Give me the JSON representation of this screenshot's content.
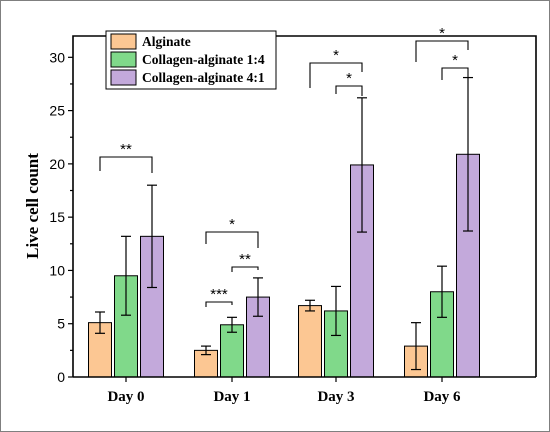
{
  "chart_data": {
    "type": "bar",
    "title": "",
    "xlabel": "",
    "ylabel": "Live cell count",
    "categories": [
      "Day 0",
      "Day 1",
      "Day 3",
      "Day 6"
    ],
    "ylim": [
      0,
      32
    ],
    "yticks": [
      0,
      5,
      10,
      15,
      20,
      25,
      30
    ],
    "grid": false,
    "legend_position": "top-left",
    "series": [
      {
        "name": "Alginate",
        "color": "#fcc793",
        "values": [
          5.1,
          2.5,
          6.7,
          2.9
        ],
        "errors": [
          1.0,
          0.4,
          0.5,
          2.2
        ]
      },
      {
        "name": "Collagen-alginate 1:4",
        "color": "#80d98a",
        "values": [
          9.5,
          4.9,
          6.2,
          8.0
        ],
        "errors": [
          3.7,
          0.7,
          2.3,
          2.4
        ]
      },
      {
        "name": "Collagen-alginate 4:1",
        "color": "#c3a9db",
        "values": [
          13.2,
          7.5,
          19.9,
          20.9
        ],
        "errors": [
          4.8,
          1.8,
          6.3,
          7.2
        ]
      }
    ],
    "significance": [
      {
        "category": 0,
        "from": 0,
        "to": 2,
        "label": "**"
      },
      {
        "category": 1,
        "from": 0,
        "to": 1,
        "label": "***"
      },
      {
        "category": 1,
        "from": 1,
        "to": 2,
        "label": "**"
      },
      {
        "category": 1,
        "from": 0,
        "to": 2,
        "label": "*"
      },
      {
        "category": 2,
        "from": 1,
        "to": 2,
        "label": "*"
      },
      {
        "category": 2,
        "from": 0,
        "to": 2,
        "label": "*"
      },
      {
        "category": 3,
        "from": 1,
        "to": 2,
        "label": "*"
      },
      {
        "category": 3,
        "from": 0,
        "to": 2,
        "label": "*"
      }
    ]
  }
}
